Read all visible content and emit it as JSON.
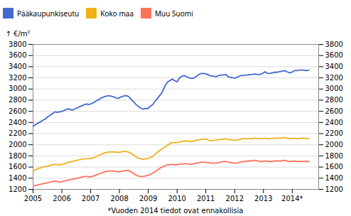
{
  "chart_data": {
    "type": "line",
    "ylabel": "€/m²",
    "footnote": "*Vuoden 2014 tiedot ovat ennakollisia",
    "x": [
      2005,
      2005.0848,
      2005.1695,
      2005.2543,
      2005.339,
      2005.4238,
      2005.5085,
      2005.5933,
      2005.6781,
      2005.7628,
      2005.8476,
      2005.9323,
      2006.0171,
      2006.1019,
      2006.1866,
      2006.2714,
      2006.3561,
      2006.4409,
      2006.5256,
      2006.6104,
      2006.6952,
      2006.7799,
      2006.8647,
      2006.9494,
      2007.0342,
      2007.1189,
      2007.2037,
      2007.2885,
      2007.3732,
      2007.458,
      2007.5427,
      2007.6275,
      2007.7123,
      2007.797,
      2007.8818,
      2007.9665,
      2008.0513,
      2008.136,
      2008.2208,
      2008.3056,
      2008.3903,
      2008.4751,
      2008.5598,
      2008.6446,
      2008.7293,
      2008.8141,
      2008.8989,
      2008.9836,
      2009.0684,
      2009.1531,
      2009.2379,
      2009.3226,
      2009.4074,
      2009.4922,
      2009.5769,
      2009.6617,
      2009.7464,
      2009.8312,
      2009.916,
      2010.0007,
      2010.0855,
      2010.1702,
      2010.255,
      2010.3397,
      2010.4245,
      2010.5093,
      2010.594,
      2010.6788,
      2010.7635,
      2010.8483,
      2010.933,
      2011.0178,
      2011.1026,
      2011.1873,
      2011.2721,
      2011.3568,
      2011.4416,
      2011.5264,
      2011.6111,
      2011.6959,
      2011.7806,
      2011.8654,
      2011.9501,
      2012.0349,
      2012.1197,
      2012.2044,
      2012.2892,
      2012.3739,
      2012.4587,
      2012.5434,
      2012.6282,
      2012.713,
      2012.7977,
      2012.8825,
      2012.9672,
      2013.052,
      2013.1368,
      2013.2215,
      2013.3063,
      2013.391,
      2013.4758,
      2013.5605,
      2013.6453,
      2013.7301,
      2013.8148,
      2013.8996,
      2013.9843,
      2014.0691,
      2014.1538,
      2014.2386,
      2014.3234,
      2014.4081,
      2014.4929,
      2014.5776
    ],
    "series": [
      {
        "name": "Pääkaupunkiseutu",
        "values": [
          2330,
          2360,
          2390,
          2410,
          2440,
          2460,
          2500,
          2530,
          2560,
          2590,
          2580,
          2590,
          2600,
          2620,
          2640,
          2640,
          2620,
          2640,
          2660,
          2680,
          2700,
          2720,
          2730,
          2720,
          2740,
          2760,
          2790,
          2810,
          2840,
          2860,
          2870,
          2880,
          2870,
          2860,
          2840,
          2830,
          2860,
          2870,
          2880,
          2870,
          2820,
          2780,
          2730,
          2690,
          2660,
          2640,
          2650,
          2650,
          2690,
          2720,
          2780,
          2830,
          2890,
          2950,
          3050,
          3120,
          3150,
          3180,
          3150,
          3130,
          3200,
          3230,
          3240,
          3220,
          3200,
          3190,
          3200,
          3230,
          3260,
          3280,
          3280,
          3270,
          3250,
          3230,
          3230,
          3220,
          3240,
          3250,
          3250,
          3260,
          3220,
          3210,
          3200,
          3200,
          3220,
          3240,
          3240,
          3250,
          3250,
          3260,
          3260,
          3270,
          3260,
          3260,
          3280,
          3310,
          3280,
          3280,
          3290,
          3300,
          3300,
          3310,
          3320,
          3330,
          3310,
          3290,
          3300,
          3330,
          3330,
          3340,
          3340,
          3340,
          3330,
          3340
        ]
      },
      {
        "name": "Koko maa",
        "values": [
          1530,
          1550,
          1570,
          1585,
          1600,
          1610,
          1620,
          1630,
          1640,
          1650,
          1640,
          1640,
          1650,
          1660,
          1680,
          1690,
          1700,
          1710,
          1720,
          1730,
          1740,
          1750,
          1750,
          1750,
          1760,
          1770,
          1790,
          1810,
          1830,
          1850,
          1860,
          1870,
          1870,
          1870,
          1870,
          1860,
          1870,
          1880,
          1880,
          1870,
          1850,
          1820,
          1790,
          1760,
          1750,
          1740,
          1750,
          1750,
          1770,
          1790,
          1830,
          1870,
          1900,
          1930,
          1960,
          1990,
          2020,
          2040,
          2040,
          2040,
          2050,
          2060,
          2070,
          2070,
          2060,
          2060,
          2070,
          2080,
          2090,
          2100,
          2100,
          2100,
          2080,
          2070,
          2080,
          2080,
          2090,
          2100,
          2100,
          2110,
          2090,
          2090,
          2080,
          2080,
          2090,
          2100,
          2110,
          2110,
          2110,
          2110,
          2110,
          2120,
          2110,
          2110,
          2110,
          2120,
          2110,
          2110,
          2110,
          2120,
          2120,
          2120,
          2120,
          2130,
          2120,
          2110,
          2110,
          2120,
          2110,
          2110,
          2120,
          2120,
          2110,
          2110
        ]
      },
      {
        "name": "Muu Suomi",
        "values": [
          1260,
          1270,
          1280,
          1290,
          1300,
          1310,
          1320,
          1330,
          1340,
          1350,
          1340,
          1330,
          1340,
          1350,
          1360,
          1370,
          1380,
          1390,
          1400,
          1410,
          1420,
          1430,
          1430,
          1420,
          1430,
          1440,
          1460,
          1480,
          1490,
          1510,
          1520,
          1530,
          1530,
          1530,
          1520,
          1510,
          1520,
          1530,
          1540,
          1540,
          1520,
          1490,
          1460,
          1440,
          1430,
          1430,
          1440,
          1450,
          1470,
          1490,
          1520,
          1550,
          1580,
          1600,
          1620,
          1640,
          1640,
          1650,
          1640,
          1640,
          1650,
          1650,
          1660,
          1660,
          1650,
          1650,
          1660,
          1670,
          1680,
          1690,
          1690,
          1680,
          1680,
          1670,
          1670,
          1670,
          1680,
          1690,
          1700,
          1700,
          1690,
          1680,
          1670,
          1670,
          1680,
          1690,
          1700,
          1700,
          1710,
          1710,
          1710,
          1720,
          1710,
          1700,
          1700,
          1710,
          1700,
          1700,
          1700,
          1710,
          1710,
          1710,
          1710,
          1720,
          1710,
          1700,
          1700,
          1710,
          1700,
          1700,
          1700,
          1700,
          1700,
          1700
        ]
      }
    ],
    "xlim": [
      2005,
      2014.9167
    ],
    "xticks": [
      2005,
      2006,
      2007,
      2008,
      2009,
      2010,
      2011,
      2012,
      2013,
      {
        "value": 2014,
        "label": "2014*"
      }
    ],
    "ylim": [
      1200,
      3800
    ],
    "yticks": [
      1200,
      1400,
      1600,
      1800,
      2000,
      2200,
      2400,
      2600,
      2800,
      3000,
      3200,
      3400,
      3600,
      3800
    ],
    "y2lim": [
      1200,
      3800
    ],
    "y2ticks": [
      1200,
      1400,
      1600,
      1800,
      2000,
      2200,
      2400,
      2600,
      2800,
      3000,
      3200,
      3400,
      3600,
      3800
    ],
    "grid": true,
    "legend": "upper left"
  }
}
